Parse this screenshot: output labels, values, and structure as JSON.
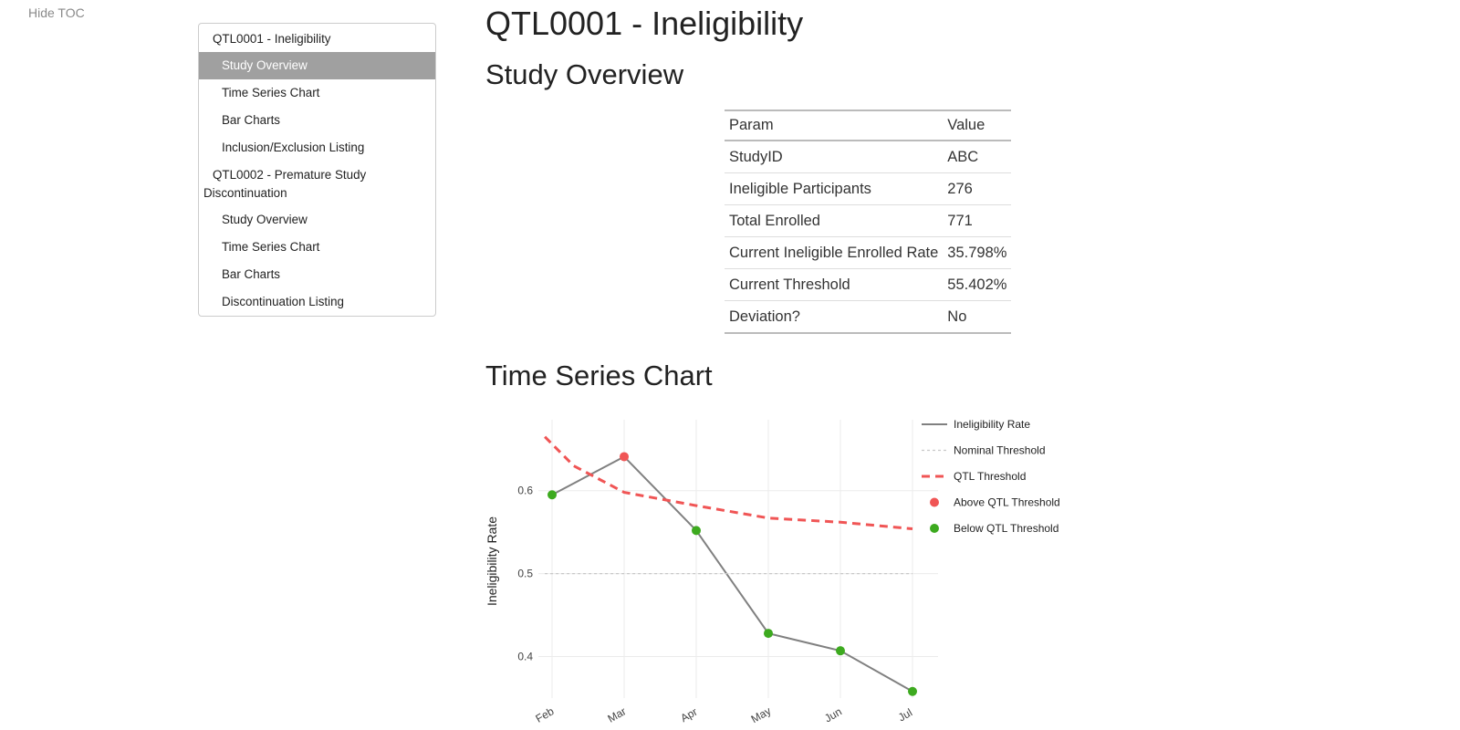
{
  "toc": {
    "toggle_label": "Hide TOC",
    "items": [
      {
        "label": "QTL0001 - Ineligibility",
        "level": 1,
        "active": false
      },
      {
        "label": "Study Overview",
        "level": 2,
        "active": true
      },
      {
        "label": "Time Series Chart",
        "level": 2,
        "active": false
      },
      {
        "label": "Bar Charts",
        "level": 2,
        "active": false
      },
      {
        "label": "Inclusion/Exclusion Listing",
        "level": 2,
        "active": false
      },
      {
        "label": "QTL0002 - Premature Study Discontinuation",
        "level": 1,
        "active": false
      },
      {
        "label": "Study Overview",
        "level": 2,
        "active": false
      },
      {
        "label": "Time Series Chart",
        "level": 2,
        "active": false
      },
      {
        "label": "Bar Charts",
        "level": 2,
        "active": false
      },
      {
        "label": "Discontinuation Listing",
        "level": 2,
        "active": false
      }
    ]
  },
  "page": {
    "title": "QTL0001 - Ineligibility",
    "overview_heading": "Study Overview",
    "timeseries_heading": "Time Series Chart"
  },
  "overview_table": {
    "headers": [
      "Param",
      "Value"
    ],
    "rows": [
      [
        "StudyID",
        "ABC"
      ],
      [
        "Ineligible Participants",
        "276"
      ],
      [
        "Total Enrolled",
        "771"
      ],
      [
        "Current Ineligible Enrolled Rate",
        "35.798%"
      ],
      [
        "Current Threshold",
        "55.402%"
      ],
      [
        "Deviation?",
        "No"
      ]
    ]
  },
  "chart_data": {
    "type": "line",
    "xlabel": "",
    "ylabel": "Ineligibility Rate",
    "categories": [
      "Feb",
      "Mar",
      "Apr",
      "May",
      "Jun",
      "Jul"
    ],
    "ylim": [
      0.35,
      0.68
    ],
    "yticks": [
      0.4,
      0.5,
      0.6
    ],
    "grid": true,
    "legend_position": "right",
    "series": [
      {
        "name": "Ineligibility Rate",
        "style": "solid",
        "color": "#808080",
        "x": [
          0,
          1,
          2,
          3,
          4,
          5
        ],
        "values": [
          0.595,
          0.641,
          0.552,
          0.428,
          0.407,
          0.358
        ]
      },
      {
        "name": "Nominal Threshold",
        "style": "dotted",
        "color": "#c8c8c8",
        "x": [
          -0.1,
          5.0
        ],
        "values": [
          0.5,
          0.5
        ]
      },
      {
        "name": "QTL Threshold",
        "style": "dashed",
        "color": "#f05555",
        "x": [
          -0.1,
          0.3,
          1.0,
          2.0,
          3.0,
          4.0,
          5.0
        ],
        "values": [
          0.665,
          0.63,
          0.598,
          0.582,
          0.567,
          0.562,
          0.554
        ]
      }
    ],
    "points": [
      {
        "name": "Above QTL Threshold",
        "color": "#f05555",
        "x": [
          1
        ],
        "values": [
          0.641
        ]
      },
      {
        "name": "Below QTL Threshold",
        "color": "#3daa1f",
        "x": [
          0,
          2,
          3,
          4,
          5
        ],
        "values": [
          0.595,
          0.552,
          0.428,
          0.407,
          0.358
        ]
      }
    ]
  }
}
